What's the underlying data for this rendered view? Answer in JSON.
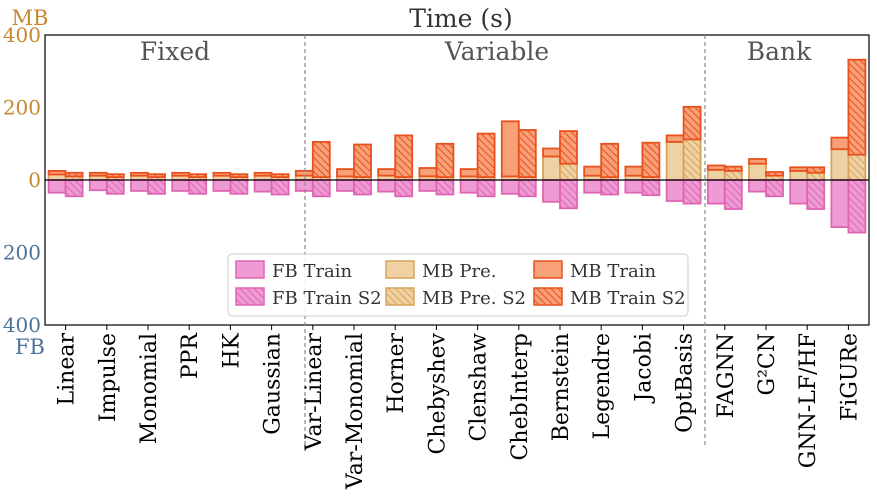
{
  "chart_data": {
    "type": "bar",
    "title": "Time (s)",
    "top_axis_label": "MB",
    "bottom_axis_label": "FB",
    "ylim_top": [
      0,
      400
    ],
    "ylim_bottom": [
      0,
      400
    ],
    "top_ticks": [
      "400",
      "200",
      "0"
    ],
    "bottom_ticks": [
      "200",
      "400"
    ],
    "groups": [
      {
        "label": "Fixed",
        "categories": [
          "Linear",
          "Impulse",
          "Monomial",
          "PPR",
          "HK",
          "Gaussian"
        ]
      },
      {
        "label": "Variable",
        "categories": [
          "Var-Linear",
          "Var-Monomial",
          "Horner",
          "Chebyshev",
          "Clenshaw",
          "ChebInterp",
          "Bernstein",
          "Legendre",
          "Jacobi",
          "OptBasis"
        ]
      },
      {
        "label": "Bank",
        "categories": [
          "FAGNN",
          "G²CN",
          "GNN-LF/HF",
          "FiGURe"
        ]
      }
    ],
    "categories": [
      "Linear",
      "Impulse",
      "Monomial",
      "PPR",
      "HK",
      "Gaussian",
      "Var-Linear",
      "Var-Monomial",
      "Horner",
      "Chebyshev",
      "Clenshaw",
      "ChebInterp",
      "Bernstein",
      "Legendre",
      "Jacobi",
      "OptBasis",
      "FAGNN",
      "G²CN",
      "GNN-LF/HF",
      "FiGURe"
    ],
    "series": [
      {
        "name": "FB Train",
        "side": "bottom",
        "pattern": "solid",
        "color": "#e377c2",
        "values": [
          35,
          28,
          30,
          30,
          30,
          32,
          30,
          30,
          32,
          30,
          35,
          38,
          60,
          35,
          35,
          58,
          65,
          32,
          65,
          130
        ]
      },
      {
        "name": "FB Train S2",
        "side": "bottom",
        "pattern": "hatched",
        "color": "#e377c2",
        "values": [
          45,
          38,
          38,
          38,
          38,
          40,
          45,
          40,
          45,
          40,
          45,
          45,
          78,
          40,
          42,
          65,
          80,
          45,
          80,
          145
        ]
      },
      {
        "name": "MB Pre.",
        "side": "top",
        "pattern": "solid",
        "color": "#dfa860",
        "values": [
          15,
          12,
          12,
          12,
          12,
          12,
          12,
          10,
          12,
          10,
          10,
          10,
          65,
          12,
          12,
          105,
          28,
          45,
          25,
          85
        ]
      },
      {
        "name": "MB Pre. S2",
        "side": "top",
        "pattern": "hatched",
        "color": "#dfa860",
        "values": [
          10,
          8,
          8,
          8,
          8,
          8,
          8,
          8,
          8,
          8,
          8,
          8,
          45,
          8,
          8,
          112,
          25,
          12,
          20,
          70
        ]
      },
      {
        "name": "MB Train",
        "side": "top",
        "pattern": "solid",
        "color": "#f05a28",
        "values": [
          10,
          8,
          8,
          8,
          8,
          8,
          13,
          20,
          18,
          23,
          20,
          152,
          22,
          25,
          25,
          18,
          12,
          13,
          10,
          32
        ]
      },
      {
        "name": "MB Train S2",
        "side": "top",
        "pattern": "hatched",
        "color": "#f05a28",
        "values": [
          10,
          8,
          8,
          8,
          8,
          8,
          97,
          90,
          115,
          92,
          120,
          130,
          90,
          92,
          95,
          90,
          12,
          10,
          15,
          262
        ]
      }
    ],
    "legend_placement": "bottom-center",
    "legend_order": [
      "FB Train",
      "FB Train S2",
      "MB Pre.",
      "MB Pre. S2",
      "MB Train",
      "MB Train S2"
    ]
  }
}
